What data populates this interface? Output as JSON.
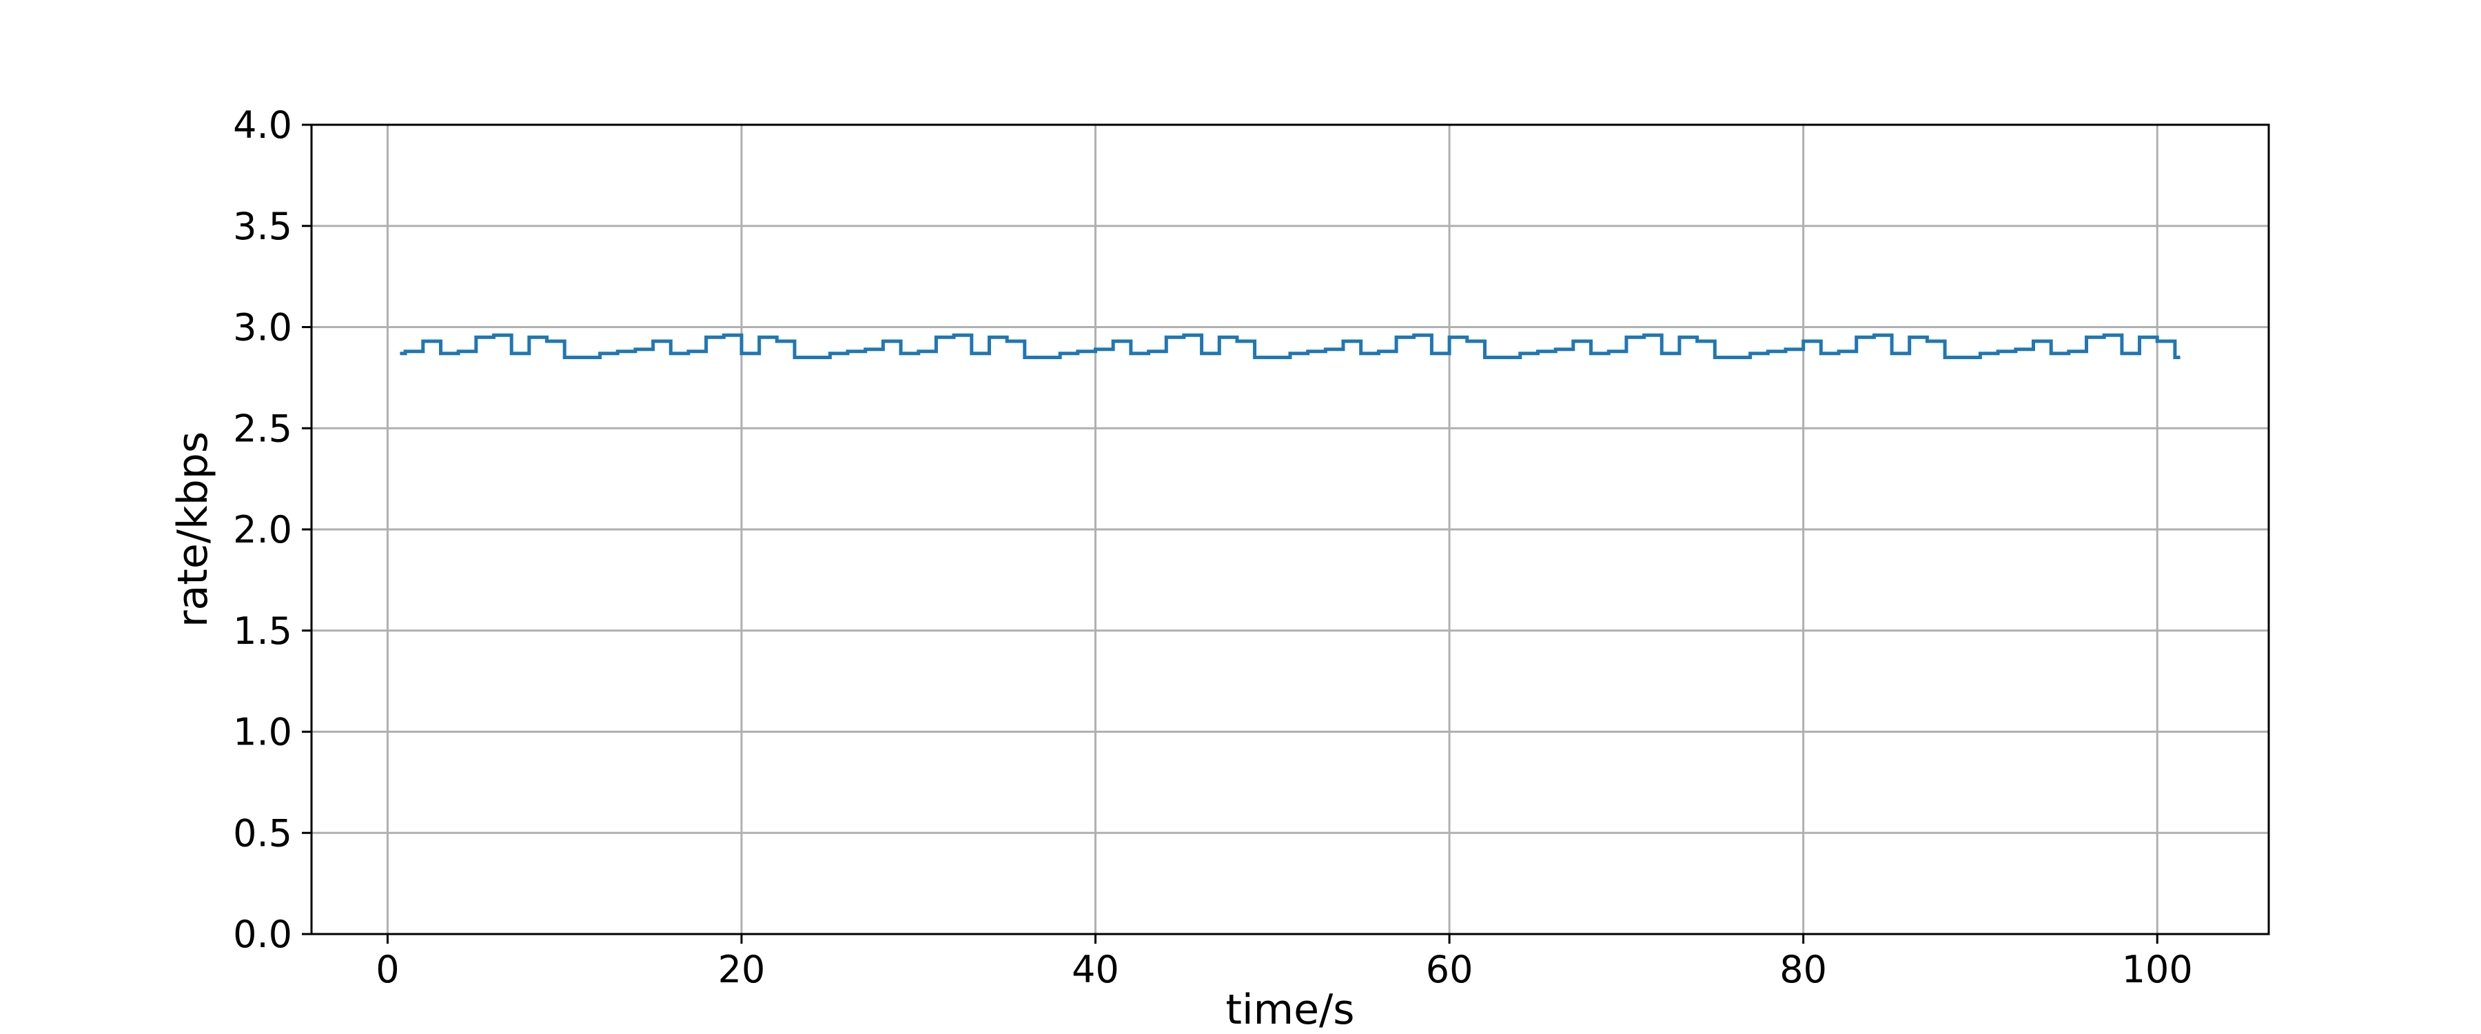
{
  "chart_data": {
    "type": "line",
    "title": "",
    "xlabel": "time/s",
    "ylabel": "rate/kbps",
    "xlim": [
      -4.3,
      106.3
    ],
    "ylim": [
      0.0,
      4.0
    ],
    "xticks": [
      0,
      20,
      40,
      60,
      80,
      100
    ],
    "xtick_labels": [
      "0",
      "20",
      "40",
      "60",
      "80",
      "100"
    ],
    "yticks": [
      0.0,
      0.5,
      1.0,
      1.5,
      2.0,
      2.5,
      3.0,
      3.5,
      4.0
    ],
    "ytick_labels": [
      "0.0",
      "0.5",
      "1.0",
      "1.5",
      "2.0",
      "2.5",
      "3.0",
      "3.5",
      "4.0"
    ],
    "grid": true,
    "legend": "none",
    "line_color": "#1f77b4",
    "grid_color": "#b0b0b0",
    "step": "post",
    "series": [
      {
        "x": [
          0.7,
          1.0,
          2.0,
          3.0,
          4.0,
          5.0,
          6.0,
          7.0,
          8.0,
          9.0,
          10.0,
          11.0,
          12.0,
          13.0,
          14.0,
          15.0,
          16.0,
          17.0,
          18.0,
          19.0,
          20.0,
          21.0,
          22.0,
          23.0,
          24.0,
          25.0,
          26.0,
          27.0,
          28.0,
          29.0,
          30.0,
          31.0,
          32.0,
          33.0,
          34.0,
          35.0,
          36.0,
          37.0,
          38.0,
          39.0,
          40.0,
          41.0,
          42.0,
          43.0,
          44.0,
          45.0,
          46.0,
          47.0,
          48.0,
          49.0,
          50.0,
          51.0,
          52.0,
          53.0,
          54.0,
          55.0,
          56.0,
          57.0,
          58.0,
          59.0,
          60.0,
          61.0,
          62.0,
          63.0,
          64.0,
          65.0,
          66.0,
          67.0,
          68.0,
          69.0,
          70.0,
          71.0,
          72.0,
          73.0,
          74.0,
          75.0,
          76.0,
          77.0,
          78.0,
          79.0,
          80.0,
          81.0,
          82.0,
          83.0,
          84.0,
          85.0,
          86.0,
          87.0,
          88.0,
          89.0,
          90.0,
          91.0,
          92.0,
          93.0,
          94.0,
          95.0,
          96.0,
          97.0,
          98.0,
          99.0,
          100.0,
          101.0
        ],
        "y": [
          2.87,
          2.88,
          2.93,
          2.87,
          2.88,
          2.95,
          2.96,
          2.87,
          2.95,
          2.93,
          2.85,
          2.85,
          2.87,
          2.88,
          2.89,
          2.93,
          2.87,
          2.88,
          2.95,
          2.96,
          2.87,
          2.95,
          2.93,
          2.85,
          2.85,
          2.87,
          2.88,
          2.89,
          2.93,
          2.87,
          2.88,
          2.95,
          2.96,
          2.87,
          2.95,
          2.93,
          2.85,
          2.85,
          2.87,
          2.88,
          2.89,
          2.93,
          2.87,
          2.88,
          2.95,
          2.96,
          2.87,
          2.95,
          2.93,
          2.85,
          2.85,
          2.87,
          2.88,
          2.89,
          2.93,
          2.87,
          2.88,
          2.95,
          2.96,
          2.87,
          2.95,
          2.93,
          2.85,
          2.85,
          2.87,
          2.88,
          2.89,
          2.93,
          2.87,
          2.88,
          2.95,
          2.96,
          2.87,
          2.95,
          2.93,
          2.85,
          2.85,
          2.87,
          2.88,
          2.89,
          2.93,
          2.87,
          2.88,
          2.95,
          2.96,
          2.87,
          2.95,
          2.93,
          2.85,
          2.85,
          2.87,
          2.88,
          2.89,
          2.93,
          2.87,
          2.88,
          2.95,
          2.96,
          2.87,
          2.95,
          2.93,
          2.85
        ]
      }
    ]
  }
}
